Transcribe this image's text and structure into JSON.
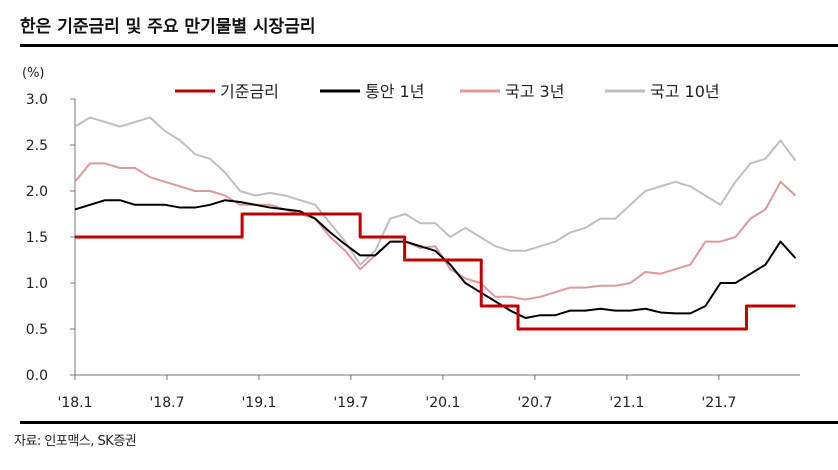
{
  "title": "한은 기준금리 및 주요 만기물별 시장금리",
  "source": "자료: 인포맥스, SK증권",
  "chart_data": {
    "type": "line",
    "ylabel": "(%)",
    "ylim": [
      0,
      3.0
    ],
    "yticks": [
      "0.0",
      "0.5",
      "1.0",
      "1.5",
      "2.0",
      "2.5",
      "3.0"
    ],
    "xticks": [
      "'18.1",
      "'18.7",
      "'19.1",
      "'19.7",
      "'20.1",
      "'20.7",
      "'21.1",
      "'21.7"
    ],
    "x_unit": "months since 2018-01",
    "x_range": [
      0,
      47
    ],
    "legend_position": "top",
    "series": [
      {
        "name": "기준금리",
        "color": "#c00000",
        "step": true,
        "points": [
          [
            0,
            1.5
          ],
          [
            10.9,
            1.5
          ],
          [
            10.9,
            1.75
          ],
          [
            18.6,
            1.75
          ],
          [
            18.6,
            1.5
          ],
          [
            21.5,
            1.5
          ],
          [
            21.5,
            1.25
          ],
          [
            26.5,
            1.25
          ],
          [
            26.5,
            0.75
          ],
          [
            28.9,
            0.75
          ],
          [
            28.9,
            0.5
          ],
          [
            43.8,
            0.5
          ],
          [
            43.8,
            0.75
          ],
          [
            47,
            0.75
          ]
        ]
      },
      {
        "name": "통안 1년",
        "color": "#000000",
        "values": [
          1.8,
          1.85,
          1.9,
          1.9,
          1.85,
          1.85,
          1.85,
          1.82,
          1.82,
          1.85,
          1.9,
          1.88,
          1.85,
          1.82,
          1.8,
          1.78,
          1.7,
          1.55,
          1.42,
          1.3,
          1.3,
          1.45,
          1.45,
          1.4,
          1.35,
          1.2,
          1.0,
          0.9,
          0.8,
          0.7,
          0.62,
          0.65,
          0.65,
          0.7,
          0.7,
          0.72,
          0.7,
          0.7,
          0.72,
          0.68,
          0.67,
          0.67,
          0.75,
          1.0,
          1.0,
          1.1,
          1.2,
          1.45,
          1.27
        ]
      },
      {
        "name": "국고 3년",
        "color": "#dc9a9a",
        "values": [
          2.1,
          2.3,
          2.3,
          2.25,
          2.25,
          2.15,
          2.1,
          2.05,
          2.0,
          2.0,
          1.95,
          1.85,
          1.85,
          1.85,
          1.8,
          1.75,
          1.7,
          1.5,
          1.35,
          1.15,
          1.3,
          1.45,
          1.45,
          1.38,
          1.4,
          1.15,
          1.05,
          1.0,
          0.85,
          0.85,
          0.82,
          0.85,
          0.9,
          0.95,
          0.95,
          0.97,
          0.97,
          1.0,
          1.12,
          1.1,
          1.15,
          1.2,
          1.45,
          1.45,
          1.5,
          1.7,
          1.8,
          2.1,
          1.95
        ]
      },
      {
        "name": "국고 10년",
        "color": "#bfbfbf",
        "values": [
          2.7,
          2.8,
          2.75,
          2.7,
          2.75,
          2.8,
          2.65,
          2.55,
          2.4,
          2.35,
          2.2,
          2.0,
          1.95,
          1.98,
          1.95,
          1.9,
          1.85,
          1.65,
          1.45,
          1.2,
          1.35,
          1.7,
          1.75,
          1.65,
          1.65,
          1.5,
          1.6,
          1.5,
          1.4,
          1.35,
          1.35,
          1.4,
          1.45,
          1.55,
          1.6,
          1.7,
          1.7,
          1.85,
          2.0,
          2.05,
          2.1,
          2.05,
          1.95,
          1.85,
          2.1,
          2.3,
          2.35,
          2.55,
          2.33
        ]
      }
    ]
  }
}
